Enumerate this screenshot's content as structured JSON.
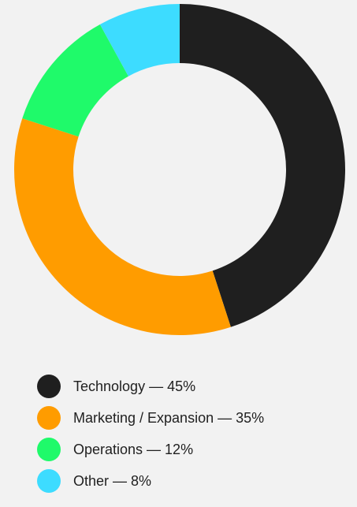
{
  "chart_data": {
    "type": "pie",
    "variant": "donut",
    "categories": [
      "Technology",
      "Marketing / Expansion",
      "Operations",
      "Other"
    ],
    "values": [
      45,
      35,
      12,
      8
    ],
    "unit": "%",
    "colors": [
      "#1f1f1f",
      "#ff9c00",
      "#1ffa6a",
      "#3ddcff"
    ],
    "legend_position": "bottom",
    "legend_labels": [
      "Technology — 45%",
      "Marketing / Expansion — 35%",
      "Operations — 12%",
      "Other — 8%"
    ]
  }
}
